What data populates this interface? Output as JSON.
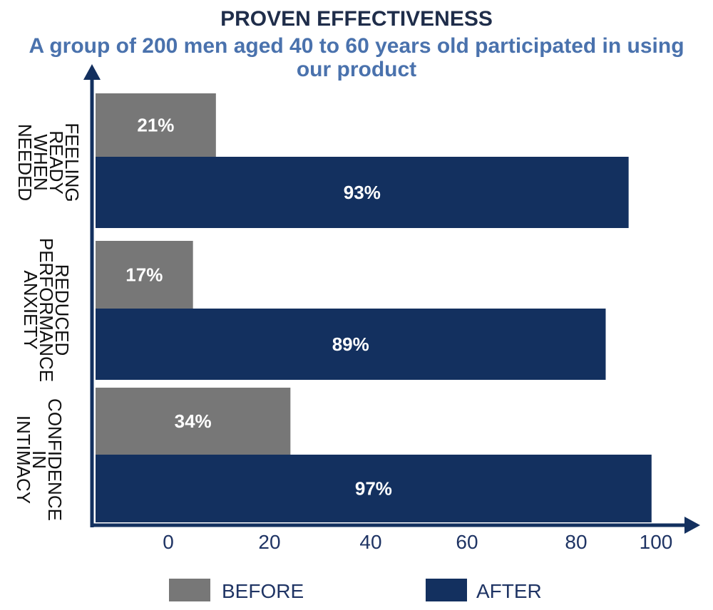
{
  "chart_data": {
    "type": "bar",
    "orientation": "horizontal",
    "title": "PROVEN EFFECTIVENESS",
    "subtitle": "A group of 200 men aged 40 to 60 years old participated in using our product",
    "categories": [
      [
        "FEELING",
        "READY",
        "WHEN",
        "NEEDED"
      ],
      [
        "REDUCED",
        "PERFORMANCE",
        "ANXIETY"
      ],
      [
        "CONFIDENCE",
        "IN",
        "INTIMACY"
      ]
    ],
    "series": [
      {
        "name": "BEFORE",
        "color": "#777777",
        "values": [
          21,
          17,
          34
        ],
        "labels": [
          "21%",
          "17%",
          "34%"
        ]
      },
      {
        "name": "AFTER",
        "color": "#13305f",
        "values": [
          93,
          89,
          97
        ],
        "labels": [
          "93%",
          "89%",
          "97%"
        ]
      }
    ],
    "x_ticks": [
      "0",
      "20",
      "40",
      "60",
      "80",
      "100"
    ],
    "xlim": [
      0,
      100
    ],
    "legend": {
      "placement": "bottom"
    },
    "axis_color": "#13305f"
  }
}
